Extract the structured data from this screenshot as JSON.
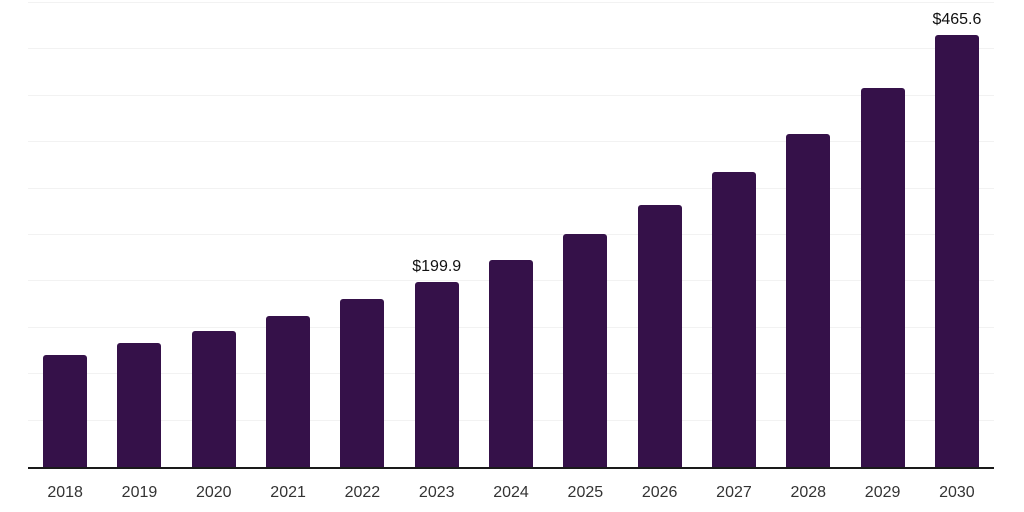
{
  "chart_data": {
    "type": "bar",
    "title": "",
    "xlabel": "",
    "ylabel": "",
    "categories": [
      "2018",
      "2019",
      "2020",
      "2021",
      "2022",
      "2023",
      "2024",
      "2025",
      "2026",
      "2027",
      "2028",
      "2029",
      "2030"
    ],
    "values": [
      120.8,
      133.3,
      146.8,
      162.7,
      181.1,
      199.9,
      223.6,
      251.6,
      282.4,
      317.9,
      359.3,
      408.2,
      465.6
    ],
    "value_labels": {
      "2023": "$199.9",
      "2030": "$465.6"
    },
    "ylim": [
      0,
      500
    ],
    "gridline_step": 50,
    "grid": true,
    "legend_position": "none",
    "colors": {
      "bar": "#351149",
      "axis_line": "#1a1a1a",
      "gridline": "#f2f2f2",
      "tick_label": "#333333",
      "value_label": "#111111",
      "background": "#ffffff"
    }
  }
}
